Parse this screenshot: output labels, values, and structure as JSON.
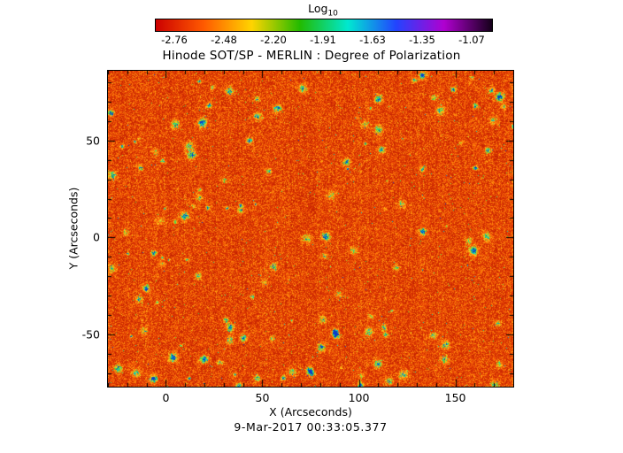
{
  "figure": {
    "title": "Hinode SOT/SP - MERLIN : Degree of Polarization",
    "timestamp": "9-Mar-2017 00:33:05.377"
  },
  "colorbar": {
    "label": "Log",
    "label_sub": "10",
    "ticks": [
      "-2.76",
      "-2.48",
      "-2.20",
      "-1.91",
      "-1.63",
      "-1.35",
      "-1.07"
    ],
    "gradient": [
      "#cc0000",
      "#ff5a00",
      "#ffd400",
      "#22bb00",
      "#00e8d0",
      "#2244ff",
      "#b000d0",
      "#15001a"
    ]
  },
  "axes": {
    "x_label": "X (Arcseconds)",
    "y_label": "Y (Arcseconds)",
    "x_ticks": [
      "0",
      "50",
      "100",
      "150"
    ],
    "y_ticks": [
      "50",
      "0",
      "-50"
    ]
  },
  "chart_data": {
    "type": "heatmap",
    "title": "Hinode SOT/SP - MERLIN : Degree of Polarization",
    "xlabel": "X (Arcseconds)",
    "ylabel": "Y (Arcseconds)",
    "xlim": [
      -30,
      180
    ],
    "ylim": [
      -77,
      86
    ],
    "x_ticks": [
      0,
      50,
      100,
      150
    ],
    "y_ticks": [
      50,
      0,
      -50
    ],
    "color_scale": {
      "label": "Log10",
      "ticks": [
        -2.76,
        -2.48,
        -2.2,
        -1.91,
        -1.63,
        -1.35,
        -1.07
      ],
      "range": [
        -2.9,
        -1.0
      ],
      "colormap_order": [
        "red",
        "orange",
        "yellow",
        "green",
        "cyan",
        "blue",
        "violet",
        "black"
      ]
    },
    "value_summary": "Log10 degree of polarization field dominated by values around -2.8 to -2.2 (rendered red/orange) with fine yellow speckle and sparse small patches reaching roughly -1.9 to -1.5 (green/cyan blobs) scattered across the map.",
    "timestamp": "9-Mar-2017 00:33:05.377"
  }
}
